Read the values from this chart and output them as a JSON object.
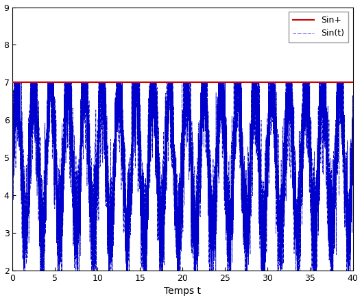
{
  "title": "",
  "xlabel": "Temps t",
  "ylabel": "",
  "xlim": [
    0,
    40
  ],
  "ylim": [
    2,
    9
  ],
  "yticks": [
    2,
    3,
    4,
    5,
    6,
    7,
    8,
    9
  ],
  "xticks": [
    0,
    5,
    10,
    15,
    20,
    25,
    30,
    35,
    40
  ],
  "hline_value": 7,
  "hline_color": "#cc0000",
  "hline_label": "Sin+",
  "signal_color": "#0000cc",
  "signal_label": "Sin(t)",
  "signal_mean": 5.0,
  "signal_amplitude": 2.0,
  "signal_freq": 0.5,
  "noise_amplitude": 0.8,
  "t_start": 0,
  "t_end": 40,
  "n_points": 8000,
  "random_seed": 42,
  "figsize": [
    5.28,
    4.38
  ],
  "dpi": 100,
  "background_color": "#ffffff",
  "legend_fontsize": 9,
  "tick_fontsize": 9,
  "xlabel_fontsize": 10
}
